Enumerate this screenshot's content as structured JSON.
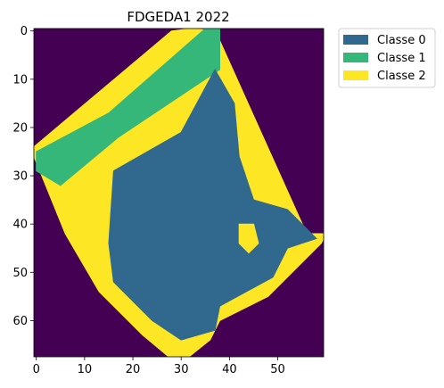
{
  "chart_data": {
    "type": "heatmap",
    "title": "FDGEDA1 2022",
    "xlabel": "",
    "ylabel": "",
    "x_ticks": [
      0,
      10,
      20,
      30,
      40,
      50
    ],
    "y_ticks": [
      0,
      10,
      20,
      30,
      40,
      50,
      60
    ],
    "xlim": [
      -0.5,
      59.5
    ],
    "ylim": [
      67.5,
      -0.5
    ],
    "grid": false,
    "legend_position": "outside upper-right",
    "background_color": "#440154",
    "classes": [
      {
        "name": "Classe 0",
        "color": "#31688e"
      },
      {
        "name": "Classe 1",
        "color": "#35b779"
      },
      {
        "name": "Classe 2",
        "color": "#fde725"
      }
    ],
    "regions": [
      {
        "class": "Classe 2",
        "polygon": [
          [
            28,
            0
          ],
          [
            32,
            -0.5
          ],
          [
            38,
            0
          ],
          [
            38,
            2
          ],
          [
            56,
            42
          ],
          [
            60,
            42
          ],
          [
            59,
            44
          ],
          [
            48,
            55
          ],
          [
            38,
            60
          ],
          [
            36,
            64
          ],
          [
            31,
            68
          ],
          [
            28,
            68
          ],
          [
            22,
            63
          ],
          [
            13,
            54
          ],
          [
            6,
            42
          ],
          [
            -0.5,
            26
          ],
          [
            -0.5,
            24
          ]
        ]
      },
      {
        "class": "Classe 1",
        "polygon": [
          [
            35,
            -0.5
          ],
          [
            38,
            -0.5
          ],
          [
            38,
            8
          ],
          [
            17,
            22
          ],
          [
            5,
            32
          ],
          [
            0,
            29
          ],
          [
            0,
            25
          ],
          [
            15,
            17
          ]
        ]
      },
      {
        "class": "Classe 0",
        "polygon": [
          [
            37,
            8
          ],
          [
            41,
            15
          ],
          [
            42,
            26
          ],
          [
            45,
            35
          ],
          [
            52,
            37
          ],
          [
            58,
            43
          ],
          [
            52,
            45
          ],
          [
            49,
            51
          ],
          [
            38,
            57
          ],
          [
            37,
            62
          ],
          [
            30,
            64
          ],
          [
            24,
            60
          ],
          [
            16,
            52
          ],
          [
            15,
            44
          ],
          [
            16,
            29
          ],
          [
            30,
            21
          ]
        ]
      },
      {
        "class": "Classe 2",
        "polygon": [
          [
            42,
            40
          ],
          [
            45,
            40
          ],
          [
            46,
            44
          ],
          [
            44,
            46
          ],
          [
            42,
            44
          ]
        ]
      }
    ]
  }
}
